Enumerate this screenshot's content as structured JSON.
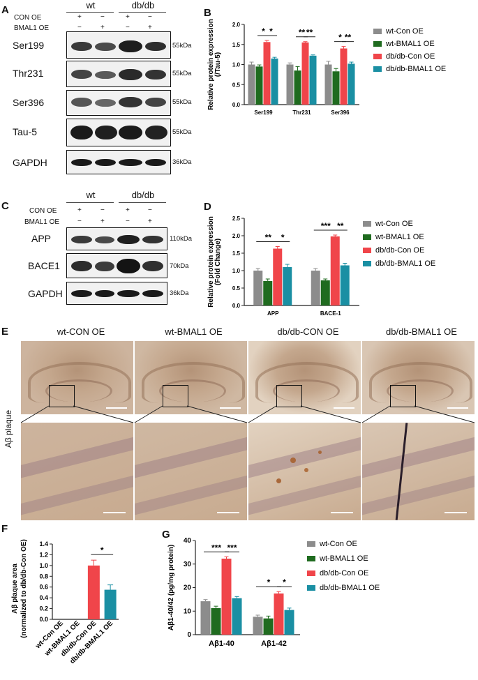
{
  "panelA": {
    "letter": "A",
    "group_wt": "wt",
    "group_db": "db/db",
    "row_con": "CON OE",
    "row_bmal": "BMAL1 OE",
    "signs_con": [
      "+",
      "−",
      "+",
      "−"
    ],
    "signs_bmal": [
      "−",
      "+",
      "−",
      "+"
    ],
    "blots": [
      {
        "label": "Ser199",
        "kda": "55kDa"
      },
      {
        "label": "Thr231",
        "kda": "55kDa"
      },
      {
        "label": "Ser396",
        "kda": "55kDa"
      },
      {
        "label": "Tau-5",
        "kda": "55kDa"
      },
      {
        "label": "GAPDH",
        "kda": "36kDa"
      }
    ]
  },
  "panelC": {
    "letter": "C",
    "group_wt": "wt",
    "group_db": "db/db",
    "row_con": "CON OE",
    "row_bmal": "BMAL1 OE",
    "signs_con": [
      "+",
      "−",
      "+",
      "−"
    ],
    "signs_bmal": [
      "−",
      "+",
      "−",
      "+"
    ],
    "blots": [
      {
        "label": "APP",
        "kda": "110kDa"
      },
      {
        "label": "BACE1",
        "kda": "70kDa"
      },
      {
        "label": "GAPDH",
        "kda": "36kDa"
      }
    ]
  },
  "panelE": {
    "letter": "E",
    "side_label": "Aβ plaque",
    "columns": [
      "wt-CON OE",
      "wt-BMAL1 OE",
      "db/db-CON OE",
      "db/db-BMAL1 OE"
    ]
  },
  "chart_data": [
    {
      "panel": "B",
      "type": "bar",
      "ylabel": "Relative protein expression (/Tau-5)",
      "ylabel_lines": [
        "Relative protein expression",
        "(/Tau-5)"
      ],
      "ylim": [
        0,
        2.0
      ],
      "yticks": [
        "0.0",
        "0.5",
        "1.0",
        "1.5",
        "2.0"
      ],
      "categories": [
        "Ser199",
        "Thr231",
        "Ser396"
      ],
      "series": [
        {
          "name": "wt-Con OE",
          "color": "#8c8c8c",
          "values": [
            1.0,
            1.0,
            1.0
          ],
          "err": [
            0.06,
            0.04,
            0.08
          ]
        },
        {
          "name": "wt-BMAL1 OE",
          "color": "#1f6b1f",
          "values": [
            0.95,
            0.85,
            0.83
          ],
          "err": [
            0.04,
            0.1,
            0.07
          ]
        },
        {
          "name": "db/db-Con OE",
          "color": "#f0454a",
          "values": [
            1.56,
            1.55,
            1.4
          ],
          "err": [
            0.04,
            0.02,
            0.05
          ]
        },
        {
          "name": "db/db-BMAL1 OE",
          "color": "#1a8fa3",
          "values": [
            1.15,
            1.22,
            1.02
          ],
          "err": [
            0.03,
            0.02,
            0.04
          ]
        }
      ],
      "significance": [
        {
          "category": 0,
          "from": 1,
          "to": 2,
          "label": "*"
        },
        {
          "category": 0,
          "from": 2,
          "to": 3,
          "label": "*"
        },
        {
          "category": 1,
          "from": 1,
          "to": 2,
          "label": "**"
        },
        {
          "category": 1,
          "from": 2,
          "to": 3,
          "label": "**"
        },
        {
          "category": 2,
          "from": 1,
          "to": 2,
          "label": "*"
        },
        {
          "category": 2,
          "from": 2,
          "to": 3,
          "label": "**"
        }
      ],
      "legend": "right"
    },
    {
      "panel": "D",
      "type": "bar",
      "ylabel": "Relative protein expression (Fold Change)",
      "ylabel_lines": [
        "Relative protein expression",
        "(Fold Change)"
      ],
      "ylim": [
        0,
        2.5
      ],
      "yticks": [
        "0.0",
        "0.5",
        "1.0",
        "1.5",
        "2.0",
        "2.5"
      ],
      "categories": [
        "APP",
        "BACE-1"
      ],
      "series": [
        {
          "name": "wt-Con OE",
          "color": "#8c8c8c",
          "values": [
            1.0,
            1.0
          ],
          "err": [
            0.06,
            0.06
          ]
        },
        {
          "name": "wt-BMAL1 OE",
          "color": "#1f6b1f",
          "values": [
            0.7,
            0.72
          ],
          "err": [
            0.06,
            0.04
          ]
        },
        {
          "name": "db/db-Con OE",
          "color": "#f0454a",
          "values": [
            1.63,
            1.98
          ],
          "err": [
            0.06,
            0.04
          ]
        },
        {
          "name": "db/db-BMAL1 OE",
          "color": "#1a8fa3",
          "values": [
            1.1,
            1.15
          ],
          "err": [
            0.08,
            0.06
          ]
        }
      ],
      "significance": [
        {
          "category": 0,
          "from": 0,
          "to": 2,
          "label": "**"
        },
        {
          "category": 0,
          "from": 2,
          "to": 3,
          "label": "*"
        },
        {
          "category": 1,
          "from": 0,
          "to": 2,
          "label": "***"
        },
        {
          "category": 1,
          "from": 2,
          "to": 3,
          "label": "**"
        }
      ],
      "legend": "right"
    },
    {
      "panel": "F",
      "type": "bar",
      "ylabel": "Aβ plaque area (normalized to db/db-Con OE)",
      "ylabel_lines": [
        "Aβ plaque area",
        "(normalized to db/db-Con OE)"
      ],
      "ylim": [
        0,
        1.4
      ],
      "yticks": [
        "0.0",
        "0.2",
        "0.4",
        "0.6",
        "0.8",
        "1.0",
        "1.2",
        "1.4"
      ],
      "categories": [
        "wt-Con OE",
        "wt-BMAL1 OE",
        "db/db-Con OE",
        "db/db-BMAL1 OE"
      ],
      "colors": [
        "#8c8c8c",
        "#1f6b1f",
        "#f0454a",
        "#1a8fa3"
      ],
      "values": [
        0,
        0,
        1.0,
        0.55
      ],
      "err": [
        0,
        0,
        0.1,
        0.09
      ],
      "significance": [
        {
          "from": 2,
          "to": 3,
          "label": "*"
        }
      ]
    },
    {
      "panel": "G",
      "type": "bar",
      "ylabel": "Aβ1-40/42 (pg/mg protein)",
      "ylim": [
        0,
        40
      ],
      "yticks": [
        "0",
        "10",
        "20",
        "30",
        "40"
      ],
      "categories": [
        "Aβ1-40",
        "Aβ1-42"
      ],
      "series": [
        {
          "name": "wt-Con OE",
          "color": "#8c8c8c",
          "values": [
            14.2,
            7.6
          ],
          "err": [
            0.7,
            0.7
          ]
        },
        {
          "name": "wt-BMAL1 OE",
          "color": "#1f6b1f",
          "values": [
            11.3,
            6.9
          ],
          "err": [
            0.8,
            1.0
          ]
        },
        {
          "name": "db/db-Con OE",
          "color": "#f0454a",
          "values": [
            32.3,
            17.5
          ],
          "err": [
            0.8,
            0.8
          ]
        },
        {
          "name": "db/db-BMAL1 OE",
          "color": "#1a8fa3",
          "values": [
            15.5,
            10.5
          ],
          "err": [
            0.7,
            0.8
          ]
        }
      ],
      "significance": [
        {
          "category": 0,
          "from": 0,
          "to": 2,
          "label": "***"
        },
        {
          "category": 0,
          "from": 2,
          "to": 3,
          "label": "***"
        },
        {
          "category": 1,
          "from": 0,
          "to": 2,
          "label": "*"
        },
        {
          "category": 1,
          "from": 2,
          "to": 3,
          "label": "*"
        }
      ],
      "legend": "right"
    }
  ]
}
